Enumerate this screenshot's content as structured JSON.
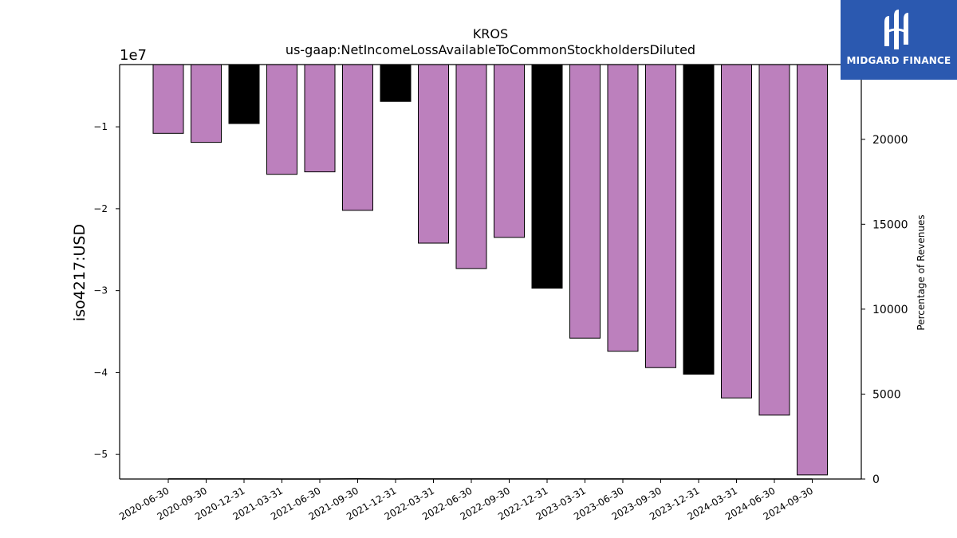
{
  "chart_data": {
    "type": "bar",
    "title": "KROS",
    "subtitle": "us-gaap:NetIncomeLossAvailableToCommonStockholdersDiluted",
    "ylabel": "iso4217:USD",
    "y_offset_label": "1e7",
    "y2label": "Percentage of Revenues",
    "ylim": [
      -53000000,
      -2400000
    ],
    "y_ticks": [
      -10000000,
      -20000000,
      -30000000,
      -40000000,
      -50000000
    ],
    "y_tick_labels": [
      "−1",
      "−2",
      "−3",
      "−4",
      "−5"
    ],
    "y2lim": [
      0,
      24400
    ],
    "y2_ticks": [
      0,
      5000,
      10000,
      15000,
      20000
    ],
    "y2_tick_labels": [
      "0",
      "5000",
      "10000",
      "15000",
      "20000"
    ],
    "categories": [
      "2020-06-30",
      "2020-09-30",
      "2020-12-31",
      "2021-03-31",
      "2021-06-30",
      "2021-09-30",
      "2021-12-31",
      "2022-03-31",
      "2022-06-30",
      "2022-09-30",
      "2022-12-31",
      "2023-03-31",
      "2023-06-30",
      "2023-09-30",
      "2023-12-31",
      "2024-03-31",
      "2024-06-30",
      "2024-09-30"
    ],
    "values": [
      -10800000,
      -11900000,
      -9600000,
      -15800000,
      -15500000,
      -20200000,
      -6900000,
      -24200000,
      -27300000,
      -23500000,
      -29700000,
      -35800000,
      -37400000,
      -39400000,
      -40200000,
      -43100000,
      -45200000,
      -52500000
    ],
    "bar_colors": [
      "#bc80bd",
      "#bc80bd",
      "#000000",
      "#bc80bd",
      "#bc80bd",
      "#bc80bd",
      "#000000",
      "#bc80bd",
      "#bc80bd",
      "#bc80bd",
      "#000000",
      "#bc80bd",
      "#bc80bd",
      "#bc80bd",
      "#000000",
      "#bc80bd",
      "#bc80bd",
      "#bc80bd"
    ],
    "secondary_line": {
      "name": "",
      "values": [
        5,
        5,
        5,
        2,
        2,
        10,
        2,
        8,
        8,
        8,
        5,
        5,
        5,
        1,
        1,
        1,
        1,
        1
      ]
    },
    "grid": false,
    "legend": "none"
  },
  "logo": {
    "text": "MIDGARD FINANCE",
    "icon": "midgard-logo-icon",
    "color": "#2b59b0"
  }
}
